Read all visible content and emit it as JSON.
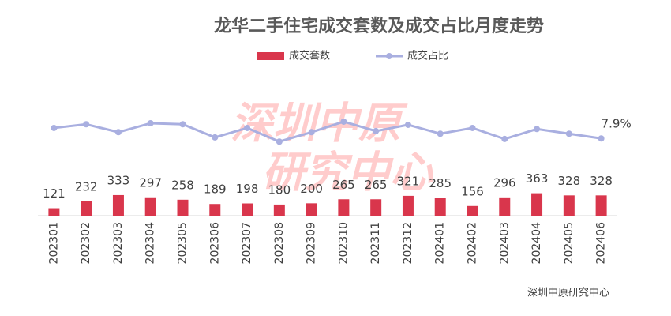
{
  "chart_data": {
    "type": "bar-line",
    "title": "龙华二手住宅成交套数及成交占比月度走势",
    "categories": [
      "202301",
      "202302",
      "202303",
      "202304",
      "202305",
      "202306",
      "202307",
      "202308",
      "202309",
      "202310",
      "202311",
      "202312",
      "202401",
      "202402",
      "202403",
      "202404",
      "202405",
      "202406"
    ],
    "series": [
      {
        "name": "成交套数",
        "type": "bar",
        "color": "#d9364c",
        "values": [
          121,
          232,
          333,
          297,
          258,
          189,
          198,
          180,
          200,
          265,
          265,
          321,
          285,
          156,
          296,
          363,
          328,
          328
        ]
      },
      {
        "name": "成交占比",
        "type": "line",
        "axis": "y2",
        "color": "#a9afe0",
        "values": [
          9.9,
          10.6,
          9.1,
          10.8,
          10.6,
          8.1,
          9.9,
          7.3,
          9.1,
          11.1,
          9.3,
          10.5,
          8.8,
          9.9,
          7.8,
          9.7,
          8.8,
          7.9
        ],
        "value_labels": [
          null,
          null,
          null,
          null,
          null,
          null,
          null,
          null,
          null,
          null,
          null,
          null,
          null,
          null,
          null,
          null,
          null,
          "7.9%"
        ]
      }
    ],
    "ylim": [
      0,
      1700
    ],
    "y2lim": [
      -6.8,
      13.2
    ],
    "watermark": [
      "深圳中原",
      "研究中心"
    ],
    "source": "深圳中原研究中心"
  }
}
